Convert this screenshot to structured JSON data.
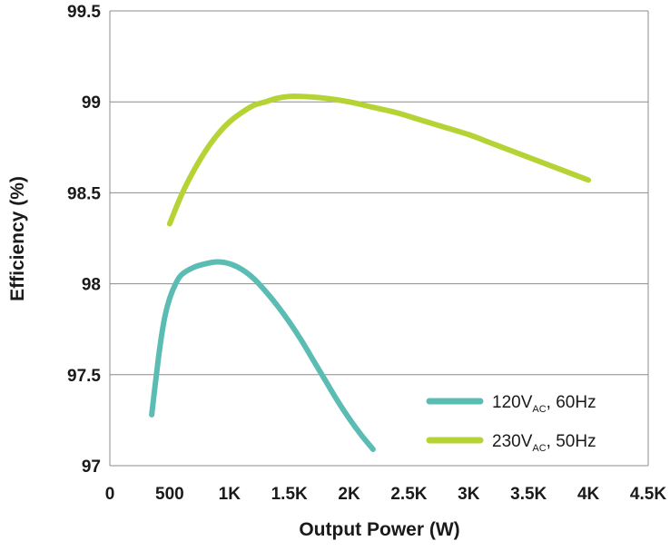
{
  "chart_data": {
    "type": "line",
    "xlabel": "Output Power (W)",
    "ylabel": "Efficiency (%)",
    "xlim": [
      0,
      4500
    ],
    "ylim": [
      97,
      99.5
    ],
    "x_ticks": [
      0,
      500,
      1000,
      1500,
      2000,
      2500,
      3000,
      3500,
      4000,
      4500
    ],
    "x_tick_labels": [
      "0",
      "500",
      "1K",
      "1.5K",
      "2K",
      "2.5K",
      "3K",
      "3.5K",
      "4K",
      "4.5K"
    ],
    "y_ticks": [
      97,
      97.5,
      98,
      98.5,
      99,
      99.5
    ],
    "y_tick_labels": [
      "97",
      "97.5",
      "98",
      "98.5",
      "99",
      "99.5"
    ],
    "grid": "horizontal",
    "legend_position": "bottom-right",
    "series": [
      {
        "name": "120V_AC, 60Hz",
        "label_main": "120V",
        "label_sub": "AC",
        "label_tail": ", 60Hz",
        "color": "#5bbcb3",
        "x": [
          350,
          380,
          420,
          460,
          500,
          550,
          600,
          700,
          800,
          900,
          1000,
          1100,
          1200,
          1300,
          1400,
          1500,
          1600,
          1700,
          1800,
          1900,
          2000,
          2100,
          2200
        ],
        "y": [
          97.28,
          97.45,
          97.66,
          97.82,
          97.92,
          98.0,
          98.05,
          98.09,
          98.11,
          98.12,
          98.11,
          98.08,
          98.03,
          97.96,
          97.88,
          97.79,
          97.69,
          97.58,
          97.47,
          97.36,
          97.26,
          97.17,
          97.09
        ]
      },
      {
        "name": "230V_AC, 50Hz",
        "label_main": "230V",
        "label_sub": "AC",
        "label_tail": ", 50Hz",
        "color": "#b5d335",
        "x": [
          500,
          600,
          700,
          800,
          900,
          1000,
          1100,
          1200,
          1300,
          1400,
          1500,
          1600,
          1800,
          2000,
          2200,
          2400,
          2600,
          2800,
          3000,
          3200,
          3400,
          3600,
          3800,
          4000
        ],
        "y": [
          98.33,
          98.49,
          98.62,
          98.73,
          98.82,
          98.89,
          98.94,
          98.98,
          99.0,
          99.02,
          99.03,
          99.03,
          99.02,
          99.0,
          98.97,
          98.94,
          98.9,
          98.86,
          98.82,
          98.77,
          98.72,
          98.67,
          98.62,
          98.57
        ]
      }
    ]
  }
}
